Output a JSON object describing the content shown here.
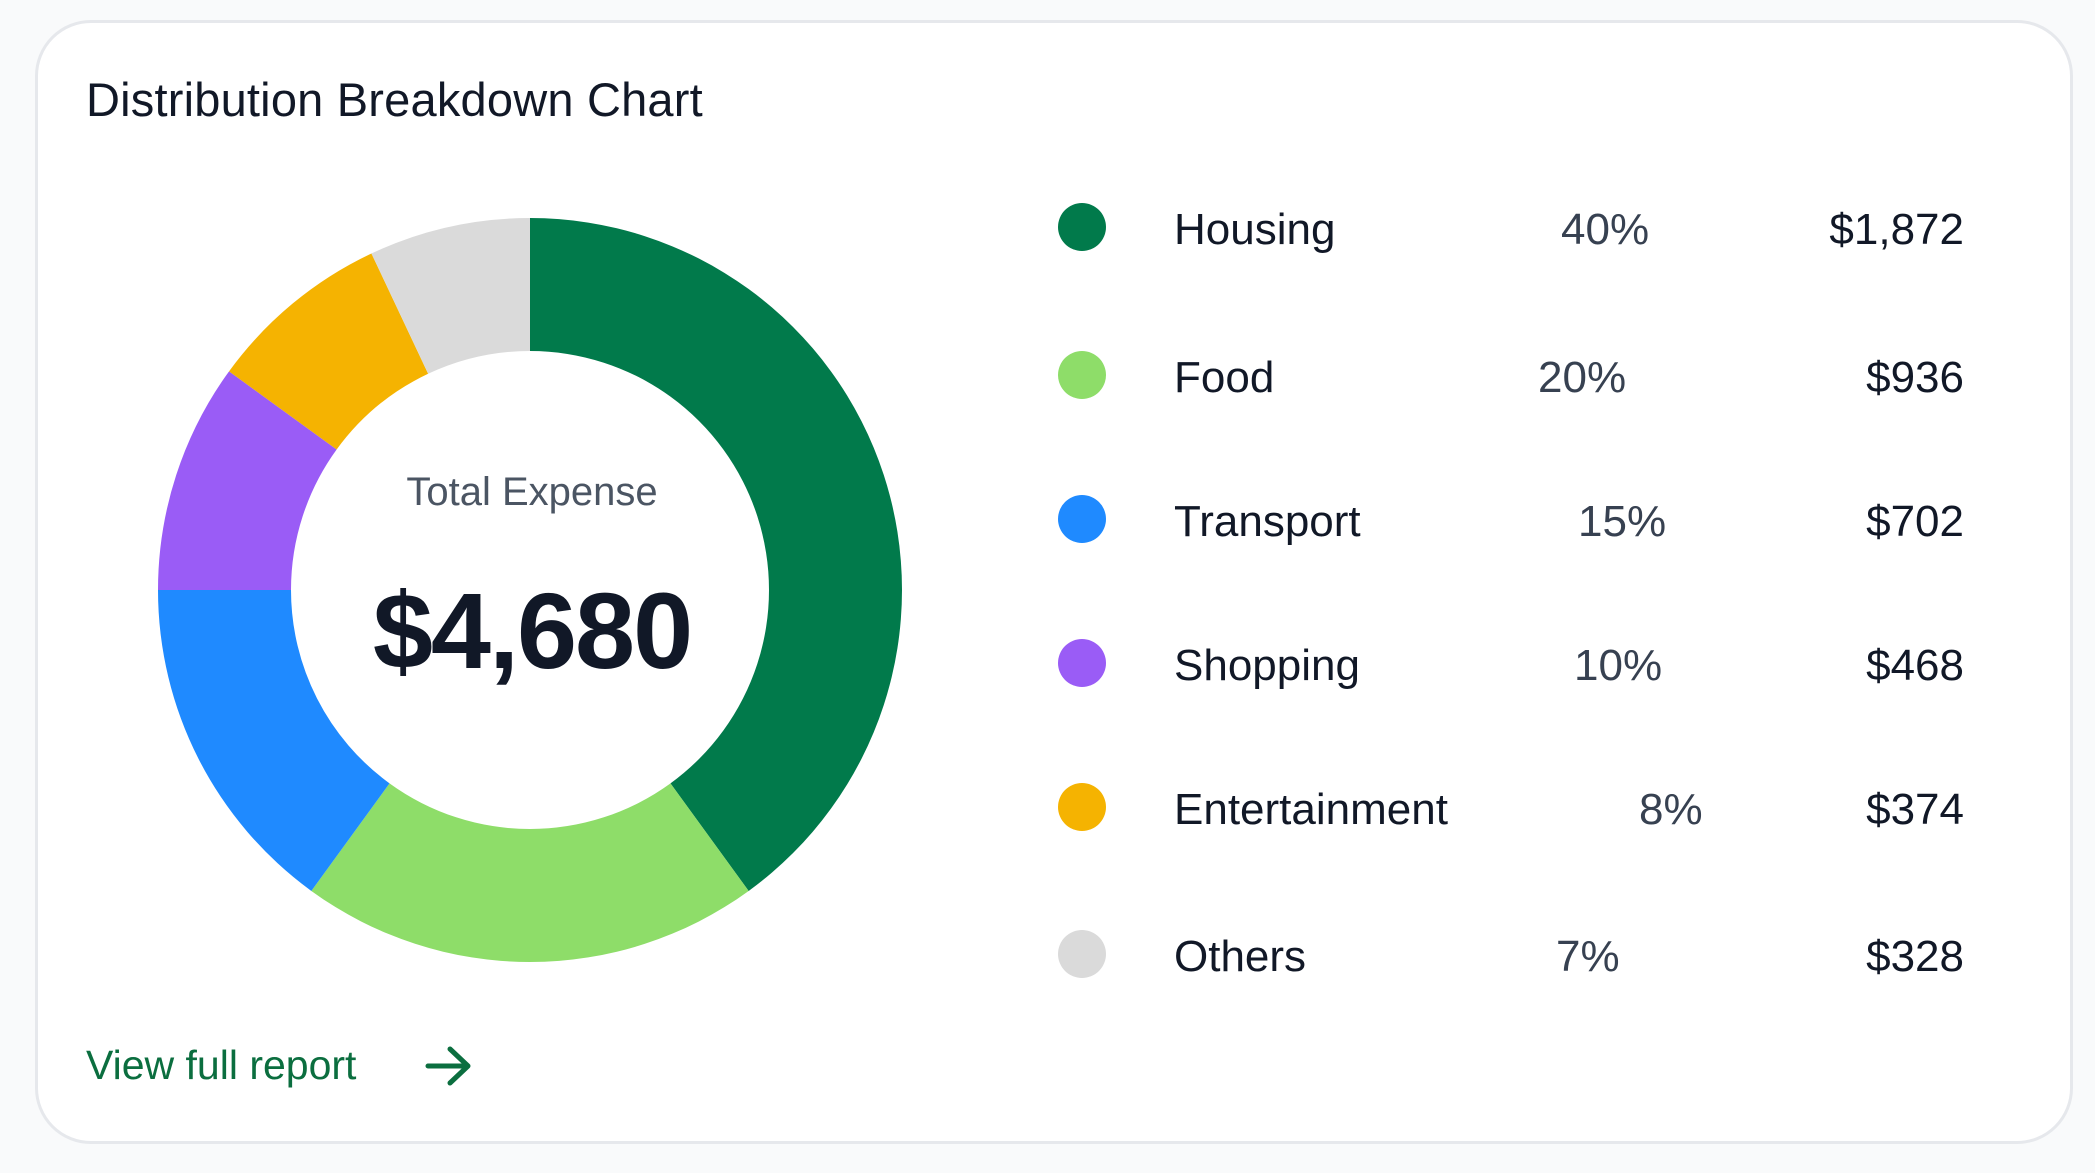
{
  "card": {
    "title": "Distribution Breakdown Chart",
    "center_label": "Total Expense",
    "center_value": "$4,680",
    "link_label": "View full report",
    "link_icon": "arrow-right-icon"
  },
  "legend": [
    {
      "name": "Housing",
      "pct": "40%",
      "amount": "$1,872",
      "color": "#017A4B"
    },
    {
      "name": "Food",
      "pct": "20%",
      "amount": "$936",
      "color": "#8EDD69"
    },
    {
      "name": "Transport",
      "pct": "15%",
      "amount": "$702",
      "color": "#1F8AFF"
    },
    {
      "name": "Shopping",
      "pct": "10%",
      "amount": "$468",
      "color": "#9A5CF6"
    },
    {
      "name": "Entertainment",
      "pct": "8%",
      "amount": "$374",
      "color": "#F5B301"
    },
    {
      "name": "Others",
      "pct": "7%",
      "amount": "$328",
      "color": "#DADADA"
    }
  ],
  "chart_data": {
    "type": "pie",
    "title": "Distribution Breakdown Chart",
    "categories": [
      "Housing",
      "Food",
      "Transport",
      "Shopping",
      "Entertainment",
      "Others"
    ],
    "values": [
      1872,
      936,
      702,
      468,
      374,
      328
    ],
    "percentages": [
      40,
      20,
      15,
      10,
      8,
      7
    ],
    "colors": [
      "#017A4B",
      "#8EDD69",
      "#1F8AFF",
      "#9A5CF6",
      "#F5B301",
      "#DADADA"
    ],
    "total": 4680,
    "donut": true,
    "legend": "right"
  },
  "colors": {
    "accent": "#0b6e3f",
    "text": "#111827"
  }
}
